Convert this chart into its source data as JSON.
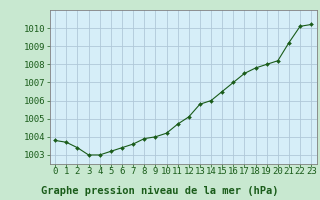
{
  "x": [
    0,
    1,
    2,
    3,
    4,
    5,
    6,
    7,
    8,
    9,
    10,
    11,
    12,
    13,
    14,
    15,
    16,
    17,
    18,
    19,
    20,
    21,
    22,
    23
  ],
  "y": [
    1003.8,
    1003.7,
    1003.4,
    1003.0,
    1003.0,
    1003.2,
    1003.4,
    1003.6,
    1003.9,
    1004.0,
    1004.2,
    1004.7,
    1005.1,
    1005.8,
    1006.0,
    1006.5,
    1007.0,
    1007.5,
    1007.8,
    1008.0,
    1008.2,
    1009.2,
    1010.1,
    1010.2
  ],
  "line_color": "#1a5c1a",
  "marker_color": "#1a5c1a",
  "bg_color": "#c8e8d0",
  "plot_bg_color": "#d6eef8",
  "grid_color": "#b0c8d8",
  "xlabel": "Graphe pression niveau de la mer (hPa)",
  "xlabel_color": "#1a5c1a",
  "tick_color": "#1a5c1a",
  "ylim": [
    1002.5,
    1011.0
  ],
  "yticks": [
    1003,
    1004,
    1005,
    1006,
    1007,
    1008,
    1009,
    1010
  ],
  "xticks": [
    0,
    1,
    2,
    3,
    4,
    5,
    6,
    7,
    8,
    9,
    10,
    11,
    12,
    13,
    14,
    15,
    16,
    17,
    18,
    19,
    20,
    21,
    22,
    23
  ],
  "spine_color": "#808080",
  "tick_fontsize": 6.5,
  "xlabel_fontsize": 7.5
}
